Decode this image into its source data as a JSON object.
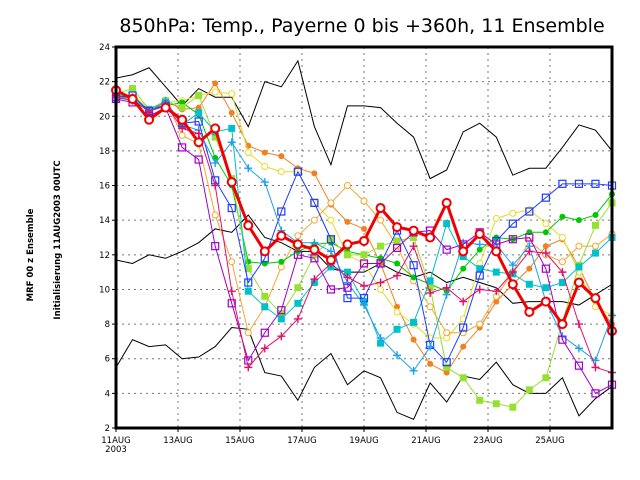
{
  "title": "850hPa: Temp., Payerne 0 bis +360h, 11 Ensemble",
  "side_labels": [
    "MRF 00 z Ensemble",
    "Initialisierung 11AUG2003 00UTC"
  ],
  "chart_data": {
    "type": "line",
    "title": "850hPa: Temp., Payerne 0 bis +360h, 11 Ensemble",
    "xlabel": "",
    "ylabel": "",
    "x_hours": [
      0,
      12,
      24,
      36,
      48,
      60,
      72,
      84,
      96,
      108,
      120,
      132,
      144,
      156,
      168,
      180,
      192,
      204,
      216,
      228,
      240,
      252,
      264,
      276,
      288,
      300,
      312,
      324,
      336,
      348,
      360
    ],
    "x_tick_labels": [
      "11AUG",
      "13AUG",
      "15AUG",
      "17AUG",
      "19AUG",
      "21AUG",
      "23AUG",
      "25AUG"
    ],
    "x_tick_year": "2003",
    "ylim": [
      2,
      24
    ],
    "y_ticks": [
      "2",
      "4",
      "6",
      "8",
      "10",
      "12",
      "14",
      "16",
      "18",
      "20",
      "22",
      "24"
    ],
    "grid": true,
    "series": [
      {
        "color": "#000000",
        "marker": "none",
        "width": 1,
        "values": [
          22.2,
          22.4,
          22.8,
          21.7,
          20.6,
          21.6,
          21.1,
          21.1,
          19.4,
          22.0,
          21.7,
          23.2,
          19.4,
          17.2,
          20.6,
          20.6,
          20.5,
          19.6,
          18.8,
          16.4,
          16.9,
          19.1,
          19.6,
          18.8,
          16.6,
          17.0,
          17.0,
          18.2,
          19.5,
          19.2,
          18.0
        ]
      },
      {
        "color": "#000000",
        "marker": "none",
        "width": 1,
        "values": [
          11.7,
          11.5,
          12.0,
          11.8,
          12.2,
          12.7,
          13.5,
          13.3,
          14.3,
          13.0,
          12.7,
          12.2,
          12.2,
          11.2,
          11.0,
          11.0,
          11.5,
          11.0,
          10.7,
          11.0,
          10.4,
          10.7,
          10.4,
          10.1,
          9.2,
          9.3,
          9.3,
          9.3,
          9.1,
          9.7,
          10.3
        ]
      },
      {
        "color": "#000000",
        "marker": "none",
        "width": 1,
        "values": [
          5.5,
          7.1,
          6.7,
          6.8,
          6.0,
          6.1,
          6.7,
          7.8,
          7.7,
          5.2,
          5.0,
          3.6,
          5.5,
          6.3,
          4.5,
          5.3,
          4.9,
          2.9,
          2.5,
          4.6,
          3.5,
          5.0,
          4.8,
          5.8,
          4.5,
          4.0,
          4.0,
          4.9,
          2.7,
          3.7,
          4.4
        ]
      },
      {
        "color": "#f08020",
        "marker": "filled-circle",
        "width": 1,
        "values": [
          21.0,
          21.2,
          20.2,
          20.9,
          20.4,
          20.5,
          21.9,
          20.2,
          18.3,
          17.9,
          17.7,
          17.0,
          16.7,
          14.9,
          13.9,
          13.5,
          11.5,
          9.0,
          7.1,
          5.7,
          5.2,
          6.7,
          7.8,
          9.3,
          10.3,
          11.2,
          12.5,
          12.9,
          11.3,
          9.3,
          8.0
        ]
      },
      {
        "color": "#e6dc28",
        "marker": "open-circle",
        "width": 1,
        "values": [
          21.0,
          21.3,
          20.4,
          20.8,
          20.9,
          21.2,
          21.4,
          21.3,
          17.9,
          17.1,
          16.8,
          16.8,
          15.0,
          14.0,
          12.0,
          11.5,
          10.0,
          8.7,
          8.0,
          7.2,
          7.2,
          8.3,
          11.5,
          14.1,
          14.4,
          14.6,
          13.8,
          13.0,
          11.0,
          9.0,
          8.5
        ]
      },
      {
        "color": "#f0a830",
        "marker": "open-circle",
        "width": 1,
        "values": [
          21.0,
          21.1,
          20.3,
          20.9,
          18.9,
          18.4,
          14.3,
          11.6,
          7.5,
          9.0,
          11.3,
          13.1,
          14.0,
          15.0,
          16.0,
          15.1,
          14.0,
          12.5,
          10.5,
          9.0,
          7.5,
          7.5,
          8.0,
          9.6,
          11.0,
          12.8,
          12.0,
          11.6,
          12.5,
          12.5,
          13.2
        ]
      },
      {
        "color": "#00c800",
        "marker": "filled-circle",
        "width": 1,
        "values": [
          21.2,
          21.0,
          20.3,
          20.6,
          20.8,
          20.1,
          17.6,
          16.0,
          11.6,
          11.5,
          11.6,
          12.2,
          12.6,
          12.7,
          12.2,
          12.0,
          11.8,
          11.5,
          10.7,
          10.3,
          9.9,
          11.2,
          12.3,
          13.0,
          12.9,
          13.3,
          13.3,
          14.2,
          14.0,
          14.3,
          15.5
        ]
      },
      {
        "color": "#96e032",
        "marker": "filled-square",
        "width": 1,
        "values": [
          21.3,
          21.6,
          20.4,
          20.9,
          20.5,
          21.2,
          18.8,
          16.4,
          11.2,
          9.6,
          8.6,
          10.1,
          12.0,
          12.9,
          12.0,
          12.0,
          12.5,
          12.8,
          13.0,
          10.1,
          5.5,
          4.9,
          3.6,
          3.4,
          3.2,
          4.2,
          4.9,
          8.1,
          11.4,
          13.7,
          15.0
        ]
      },
      {
        "color": "#00c0c8",
        "marker": "filled-square",
        "width": 1,
        "values": [
          21.3,
          21.0,
          20.4,
          20.8,
          19.5,
          20.2,
          19.1,
          19.3,
          9.9,
          9.0,
          8.3,
          9.2,
          10.4,
          11.3,
          11.0,
          9.3,
          6.9,
          7.7,
          8.1,
          10.5,
          13.8,
          11.9,
          11.2,
          11.0,
          10.9,
          10.3,
          10.1,
          10.4,
          11.3,
          12.1,
          13.0
        ]
      },
      {
        "color": "#1e3cff",
        "marker": "open-square",
        "width": 1,
        "values": [
          21.1,
          21.2,
          20.3,
          20.6,
          19.6,
          19.7,
          16.3,
          14.7,
          10.4,
          11.8,
          14.5,
          16.8,
          15.0,
          12.9,
          9.5,
          9.5,
          11.5,
          13.4,
          11.4,
          6.8,
          5.8,
          7.8,
          10.8,
          12.8,
          13.8,
          14.5,
          15.3,
          16.1,
          16.1,
          16.1,
          16.0
        ]
      },
      {
        "color": "#1ea0f0",
        "marker": "plus",
        "width": 1,
        "values": [
          21.0,
          21.1,
          20.2,
          20.9,
          19.5,
          19.2,
          17.3,
          18.5,
          17.0,
          16.2,
          13.4,
          12.7,
          12.7,
          12.2,
          10.4,
          9.1,
          7.2,
          6.2,
          5.3,
          6.7,
          9.7,
          12.7,
          12.6,
          12.6,
          11.4,
          12.5,
          9.3,
          7.3,
          6.6,
          5.9,
          8.5
        ]
      },
      {
        "color": "#a000c8",
        "marker": "open-square",
        "width": 1,
        "values": [
          21.0,
          20.8,
          20.0,
          20.5,
          18.2,
          17.5,
          12.5,
          9.2,
          5.9,
          7.5,
          8.8,
          12.0,
          11.8,
          10.0,
          10.1,
          11.5,
          11.5,
          12.4,
          13.3,
          13.4,
          12.3,
          12.6,
          13.3,
          12.6,
          12.9,
          13.0,
          11.2,
          7.1,
          5.6,
          4.0,
          4.5
        ]
      },
      {
        "color": "#e0106a",
        "marker": "plus",
        "width": 1,
        "values": [
          21.1,
          20.9,
          20.3,
          20.7,
          19.3,
          19.0,
          16.0,
          9.9,
          5.5,
          6.6,
          7.3,
          8.3,
          10.6,
          11.5,
          10.7,
          10.2,
          10.4,
          10.8,
          12.5,
          9.8,
          10.1,
          9.3,
          10.0,
          9.9,
          11.0,
          12.2,
          12.1,
          11.0,
          8.0,
          5.5,
          5.2
        ]
      },
      {
        "color": "#f00000",
        "marker": "open-circle",
        "width": 3,
        "values": [
          21.5,
          21.0,
          19.8,
          20.5,
          19.8,
          18.5,
          19.3,
          16.2,
          13.7,
          12.2,
          13.1,
          12.6,
          12.3,
          11.7,
          12.6,
          12.8,
          14.7,
          13.6,
          13.4,
          13.0,
          15.0,
          12.2,
          13.2,
          12.2,
          10.3,
          8.7,
          9.3,
          8.0,
          10.4,
          9.5,
          7.6
        ]
      }
    ]
  }
}
